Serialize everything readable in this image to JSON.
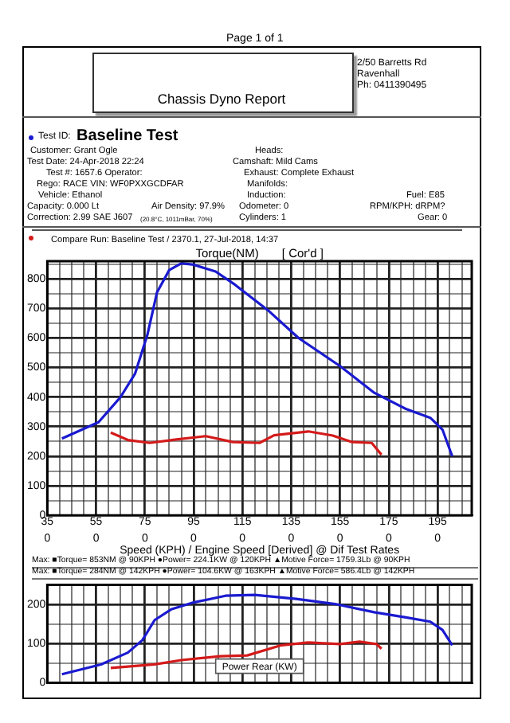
{
  "chart_data": [
    {
      "type": "other",
      "title": "Chassis Dyno Report",
      "annotations": [
        "Page 1 of 1",
        "2/50 Barretts Rd",
        "Ravenhall",
        "Ph: 0411390495",
        "Test ID:",
        "Baseline Test",
        "Customer: Grant Ogle",
        "Heads:",
        "Test Date: 24-Apr-2018 22:24",
        "Camshaft: Mild Cams",
        "Test #: 1657.6   Operator:",
        "Exhaust: Complete Exhaust",
        "Rego: RACE   VIN: WF0PXXGCDFAR",
        "Manifolds:",
        "Vehicle: Ethanol",
        "Induction:",
        "Fuel: E85",
        "Capacity: 0.000 Lt",
        "Air Density: 97.9%",
        "Odometer: 0",
        "RPM/KPH: dRPM?",
        "Correction: 2.99 SAE J607",
        "(20.8°C, 1011mBar, 70%)",
        "Cylinders: 1",
        "Gear: 0",
        "Compare Run:  Baseline Test / 2370.1,  27-Jul-2018,  14:37"
      ]
    },
    {
      "type": "line",
      "title": "Torque(NM)       [ Cor'd ]",
      "xlabel": "Speed (KPH) / Engine Speed [Derived] @ Dif Test Rates",
      "grid": true,
      "legend": false,
      "marker": "none",
      "line_style": "solid",
      "xlim": [
        35,
        209
      ],
      "ylim": [
        0,
        860
      ],
      "xticks": [
        35,
        {
          "value": 40,
          "label": null
        },
        {
          "value": 45,
          "label": null
        },
        {
          "value": 50,
          "label": null
        },
        55,
        {
          "value": 60,
          "label": null
        },
        {
          "value": 65,
          "label": null
        },
        {
          "value": 70,
          "label": null
        },
        75,
        {
          "value": 80,
          "label": null
        },
        {
          "value": 85,
          "label": null
        },
        {
          "value": 90,
          "label": null
        },
        95,
        {
          "value": 100,
          "label": null
        },
        {
          "value": 105,
          "label": null
        },
        {
          "value": 110,
          "label": null
        },
        115,
        {
          "value": 120,
          "label": null
        },
        {
          "value": 125,
          "label": null
        },
        {
          "value": 130,
          "label": null
        },
        135,
        {
          "value": 140,
          "label": null
        },
        {
          "value": 145,
          "label": null
        },
        {
          "value": 150,
          "label": null
        },
        155,
        {
          "value": 160,
          "label": null
        },
        {
          "value": 165,
          "label": null
        },
        {
          "value": 170,
          "label": null
        },
        175,
        {
          "value": 180,
          "label": null
        },
        {
          "value": 185,
          "label": null
        },
        {
          "value": 190,
          "label": null
        },
        195,
        {
          "value": 200,
          "label": null
        },
        {
          "value": 205,
          "label": null
        }
      ],
      "yticks": [
        0,
        {
          "value": 50,
          "label": null
        },
        100,
        {
          "value": 150,
          "label": null
        },
        200,
        {
          "value": 250,
          "label": null
        },
        300,
        {
          "value": 350,
          "label": null
        },
        400,
        {
          "value": 450,
          "label": null
        },
        500,
        {
          "value": 550,
          "label": null
        },
        600,
        {
          "value": 650,
          "label": null
        },
        700,
        {
          "value": 750,
          "label": null
        },
        800,
        {
          "value": 850,
          "label": null
        }
      ],
      "annotations": [
        "0",
        "0",
        "0",
        "0",
        "0",
        "0",
        "0",
        "0",
        "0",
        "Max:  ■Torque= 853NM @ 90KPH     ●Power= 224.1KW @ 120KPH     ▲Motive Force= 1759.3Lb @ 90KPH",
        "Max:  ■Torque= 284NM @ 142KPH     ●Power= 104.6KW @ 163KPH     ▲Motive Force= 586.4Lb @ 142KPH"
      ],
      "series": [
        {
          "color": "#1a1ad0",
          "x": [
            41,
            56,
            65,
            71,
            76,
            80,
            85,
            90,
            95,
            104,
            112,
            126,
            138,
            155,
            169,
            182,
            192,
            197,
            201
          ],
          "values": [
            260,
            315,
            400,
            480,
            610,
            755,
            830,
            853,
            848,
            825,
            780,
            690,
            600,
            505,
            415,
            360,
            330,
            290,
            200
          ]
        },
        {
          "color": "#d41a1a",
          "x": [
            61,
            68,
            77,
            88,
            100,
            111,
            122,
            128,
            142,
            152,
            160,
            168,
            172
          ],
          "values": [
            280,
            255,
            245,
            257,
            268,
            248,
            245,
            271,
            284,
            270,
            248,
            245,
            205
          ]
        }
      ]
    },
    {
      "type": "line",
      "title": "Power Rear (KW)",
      "grid": true,
      "legend": false,
      "marker": "none",
      "line_style": "solid",
      "tick_labels": "y",
      "xlim": [
        35,
        209
      ],
      "ylim": [
        0,
        250
      ],
      "xticks": [
        35,
        {
          "value": 40,
          "label": null
        },
        {
          "value": 45,
          "label": null
        },
        {
          "value": 50,
          "label": null
        },
        55,
        {
          "value": 60,
          "label": null
        },
        {
          "value": 65,
          "label": null
        },
        {
          "value": 70,
          "label": null
        },
        75,
        {
          "value": 80,
          "label": null
        },
        {
          "value": 85,
          "label": null
        },
        {
          "value": 90,
          "label": null
        },
        95,
        {
          "value": 100,
          "label": null
        },
        {
          "value": 105,
          "label": null
        },
        {
          "value": 110,
          "label": null
        },
        115,
        {
          "value": 120,
          "label": null
        },
        {
          "value": 125,
          "label": null
        },
        {
          "value": 130,
          "label": null
        },
        135,
        {
          "value": 140,
          "label": null
        },
        {
          "value": 145,
          "label": null
        },
        {
          "value": 150,
          "label": null
        },
        155,
        {
          "value": 160,
          "label": null
        },
        {
          "value": 165,
          "label": null
        },
        {
          "value": 170,
          "label": null
        },
        175,
        {
          "value": 180,
          "label": null
        },
        {
          "value": 185,
          "label": null
        },
        {
          "value": 190,
          "label": null
        },
        195,
        {
          "value": 200,
          "label": null
        },
        {
          "value": 205,
          "label": null
        }
      ],
      "yticks": [
        0,
        {
          "value": 50,
          "label": null
        },
        100,
        {
          "value": 150,
          "label": null
        },
        200,
        {
          "value": 250,
          "label": null
        }
      ],
      "series": [
        {
          "color": "#1a1ad0",
          "x": [
            41,
            57,
            68,
            74,
            79,
            86,
            95,
            108,
            120,
            137,
            153,
            169,
            182,
            192,
            197,
            201
          ],
          "values": [
            22,
            47,
            77,
            109,
            160,
            188,
            205,
            222,
            224,
            214,
            201,
            180,
            167,
            156,
            135,
            96
          ]
        },
        {
          "color": "#d41a1a",
          "x": [
            61,
            79,
            90,
            106,
            117,
            131,
            142,
            155,
            163,
            170,
            172
          ],
          "values": [
            38,
            47,
            58,
            68,
            70,
            96,
            103,
            99,
            105,
            99,
            87
          ]
        }
      ]
    }
  ]
}
